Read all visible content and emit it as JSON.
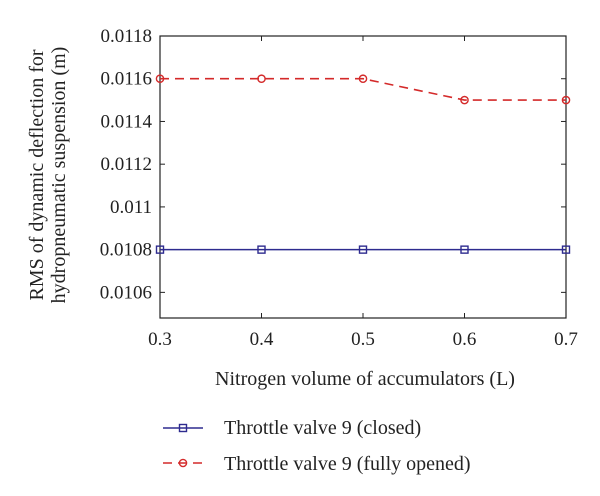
{
  "chart_data": {
    "type": "line",
    "title": "",
    "xlabel": "Nitrogen volume of accumulators (L)",
    "ylabel_line1": "RMS of dynamic deflection for",
    "ylabel_line2": "hydropneumatic suspension (m)",
    "x": [
      0.3,
      0.4,
      0.5,
      0.6,
      0.7
    ],
    "x_ticks": [
      "0.3",
      "0.4",
      "0.5",
      "0.6",
      "0.7"
    ],
    "xlim": [
      0.3,
      0.7
    ],
    "y_ticks": [
      "0.0106",
      "0.0108",
      "0.011",
      "0.0112",
      "0.0114",
      "0.0116",
      "0.0118"
    ],
    "y_tick_values": [
      0.0106,
      0.0108,
      0.011,
      0.0112,
      0.0114,
      0.0116,
      0.0118
    ],
    "ylim": [
      0.01048,
      0.0118
    ],
    "grid": false,
    "legend_position": "bottom",
    "series": [
      {
        "name": "Throttle valve 9 (closed)",
        "values": [
          0.0108,
          0.0108,
          0.0108,
          0.0108,
          0.0108
        ],
        "color": "#2e2b8f",
        "marker": "square",
        "dash": "solid"
      },
      {
        "name": "Throttle valve 9 (fully opened)",
        "values": [
          0.0116,
          0.0116,
          0.0116,
          0.0115,
          0.0115
        ],
        "color": "#d42a2a",
        "marker": "circle",
        "dash": "dashed"
      }
    ]
  }
}
